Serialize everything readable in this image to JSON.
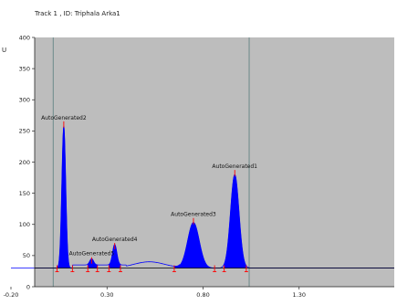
{
  "chart_data": {
    "type": "area",
    "title": "Track 1 , ID: Triphala Arka1",
    "ylabel": "",
    "y_unit_fragment": "U",
    "xlabel": "",
    "xlim": [
      -0.2,
      1.8
    ],
    "ylim": [
      0,
      400
    ],
    "x_ticks": [
      "-0.20",
      "0.30",
      "0.80",
      "1.30"
    ],
    "y_ticks": [
      "0",
      "50",
      "100",
      "150",
      "200",
      "250",
      "300",
      "350",
      "400"
    ],
    "grid": false,
    "background": "#bdbdbd",
    "fill_color": "#0000ff",
    "marker_color": "#ff0000",
    "baseline": 30,
    "vertical_lines": [
      0.02,
      1.04
    ],
    "peaks": [
      {
        "label": "AutoGenerated2",
        "rt": 0.075,
        "height": 258,
        "start": 0.04,
        "end": 0.12,
        "sigma": 0.01
      },
      {
        "label": "AutoGenerated5",
        "rt": 0.22,
        "height": 40,
        "start": 0.2,
        "end": 0.25,
        "sigma": 0.01
      },
      {
        "label": "AutoGenerated4",
        "rt": 0.34,
        "height": 63,
        "start": 0.31,
        "end": 0.37,
        "sigma": 0.011
      },
      {
        "label": "AutoGenerated3",
        "rt": 0.75,
        "height": 103,
        "start": 0.65,
        "end": 0.86,
        "sigma": 0.03
      },
      {
        "label": "AutoGenerated1",
        "rt": 0.965,
        "height": 180,
        "start": 0.91,
        "end": 1.025,
        "sigma": 0.022
      }
    ]
  }
}
